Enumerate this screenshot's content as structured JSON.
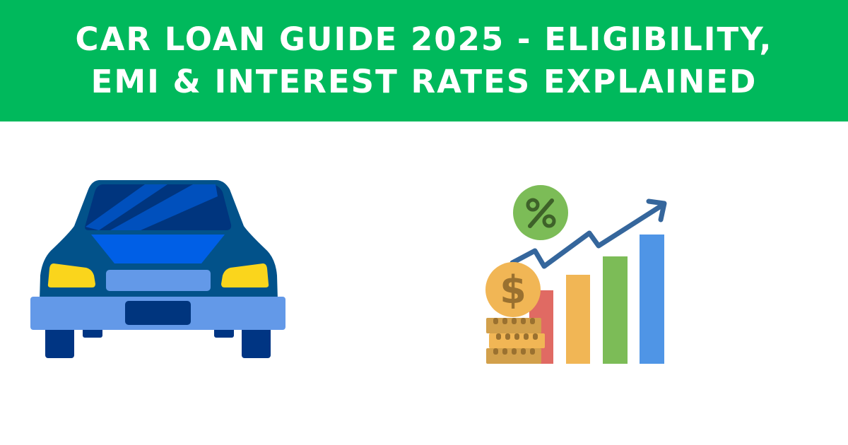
{
  "header": {
    "title_line1": "CAR LOAN GUIDE 2025 - ELIGIBILITY,",
    "title_line2": "EMI & INTEREST RATES EXPLAINED"
  },
  "illustrations": {
    "left": "car-front-icon",
    "right": "growth-chart-with-money-icon",
    "percent_symbol": "%",
    "dollar_symbol": "$"
  },
  "colors": {
    "banner": "#00b95c",
    "car_body": "#02528a",
    "car_bumper": "#6399e8",
    "headlight": "#fad51c",
    "bar_red": "#e06a63",
    "bar_orange": "#f1b655",
    "bar_green": "#7cbc57",
    "bar_blue": "#4f95e6",
    "arrow": "#35669c"
  }
}
